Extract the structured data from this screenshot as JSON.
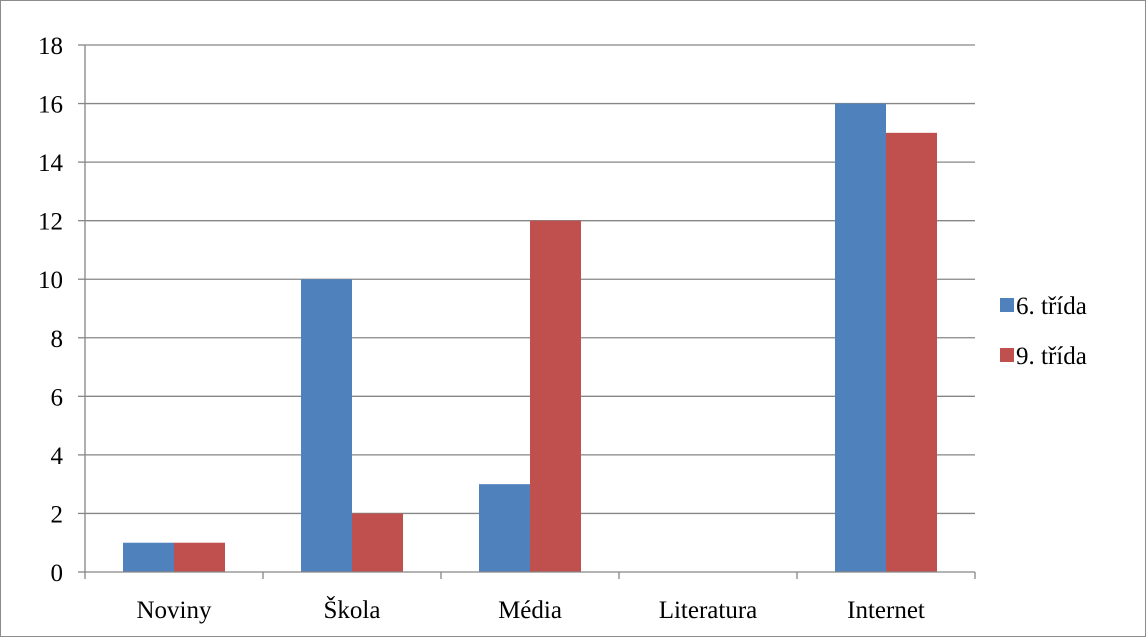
{
  "chart_data": {
    "type": "bar",
    "categories": [
      "Noviny",
      "Škola",
      "Média",
      "Literatura",
      "Internet"
    ],
    "series": [
      {
        "name": "6. třída",
        "color": "#4f81bd",
        "values": [
          1,
          10,
          3,
          0,
          16
        ]
      },
      {
        "name": "9. třída",
        "color": "#c0504d",
        "values": [
          1,
          2,
          12,
          0,
          15
        ]
      }
    ],
    "ylim": [
      0,
      18
    ],
    "yticks": [
      0,
      2,
      4,
      6,
      8,
      10,
      12,
      14,
      16,
      18
    ],
    "grid": true,
    "legend_position": "right",
    "title": "",
    "xlabel": "",
    "ylabel": ""
  }
}
